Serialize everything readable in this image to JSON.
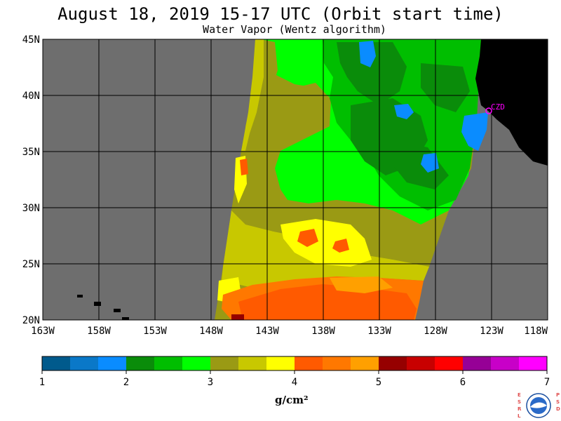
{
  "header": {
    "title": "August 18, 2019  15-17 UTC  (Orbit start time)",
    "subtitle": "Water Vapor (Wentz algorithm)"
  },
  "map": {
    "lat_labels": [
      "45N",
      "40N",
      "35N",
      "30N",
      "25N",
      "20N"
    ],
    "lon_labels": [
      "163W",
      "158W",
      "153W",
      "148W",
      "143W",
      "138W",
      "133W",
      "128W",
      "123W",
      "118W"
    ],
    "station_label": "CZD",
    "colors": {
      "no_data": "#6e6e6e",
      "land": "#000000",
      "grid": "#000000",
      "station": "#ff00ff"
    }
  },
  "colorbar": {
    "colors": [
      "#005a8c",
      "#0a78c8",
      "#0a8cff",
      "#0a8c0a",
      "#00be00",
      "#00ff00",
      "#9a9a14",
      "#c8c800",
      "#ffff00",
      "#ff5a00",
      "#ff7800",
      "#ffa000",
      "#960000",
      "#c80000",
      "#ff0000",
      "#960096",
      "#c800c8",
      "#ff00ff"
    ],
    "tick_labels": [
      "1",
      "2",
      "3",
      "4",
      "5",
      "6",
      "7"
    ],
    "unit": "g/cm²"
  },
  "logo": {
    "left_letters": "ESRL",
    "right_letters": "PSD",
    "center_text": "NOAA"
  }
}
